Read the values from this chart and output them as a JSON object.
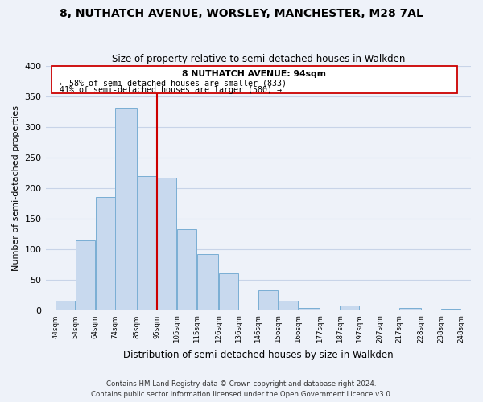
{
  "title": "8, NUTHATCH AVENUE, WORSLEY, MANCHESTER, M28 7AL",
  "subtitle": "Size of property relative to semi-detached houses in Walkden",
  "xlabel": "Distribution of semi-detached houses by size in Walkden",
  "ylabel": "Number of semi-detached properties",
  "bar_left_edges": [
    44,
    54,
    64,
    74,
    85,
    95,
    105,
    115,
    126,
    136,
    146,
    156,
    166,
    177,
    187,
    197,
    207,
    217,
    228,
    238
  ],
  "bar_widths": [
    10,
    10,
    10,
    11,
    10,
    10,
    10,
    11,
    10,
    10,
    10,
    10,
    11,
    10,
    10,
    10,
    10,
    11,
    10,
    10
  ],
  "bar_heights": [
    16,
    115,
    186,
    332,
    220,
    218,
    133,
    93,
    61,
    0,
    33,
    16,
    5,
    0,
    8,
    0,
    0,
    5,
    0,
    3
  ],
  "bar_color": "#c8d9ee",
  "bar_edge_color": "#7aaed4",
  "tick_labels": [
    "44sqm",
    "54sqm",
    "64sqm",
    "74sqm",
    "85sqm",
    "95sqm",
    "105sqm",
    "115sqm",
    "126sqm",
    "136sqm",
    "146sqm",
    "156sqm",
    "166sqm",
    "177sqm",
    "187sqm",
    "197sqm",
    "207sqm",
    "217sqm",
    "228sqm",
    "238sqm",
    "248sqm"
  ],
  "tick_positions": [
    44,
    54,
    64,
    74,
    85,
    95,
    105,
    115,
    126,
    136,
    146,
    156,
    166,
    177,
    187,
    197,
    207,
    217,
    228,
    238,
    248
  ],
  "ylim": [
    0,
    400
  ],
  "yticks": [
    0,
    50,
    100,
    150,
    200,
    250,
    300,
    350,
    400
  ],
  "xlim_left": 39,
  "xlim_right": 253,
  "property_size": 95,
  "vline_color": "#cc0000",
  "annotation_title": "8 NUTHATCH AVENUE: 94sqm",
  "annotation_line1": "← 58% of semi-detached houses are smaller (833)",
  "annotation_line2": "41% of semi-detached houses are larger (580) →",
  "annotation_box_color": "#ffffff",
  "annotation_box_edge": "#cc0000",
  "grid_color": "#c8d4e8",
  "background_color": "#eef2f9",
  "footer_line1": "Contains HM Land Registry data © Crown copyright and database right 2024.",
  "footer_line2": "Contains public sector information licensed under the Open Government Licence v3.0."
}
